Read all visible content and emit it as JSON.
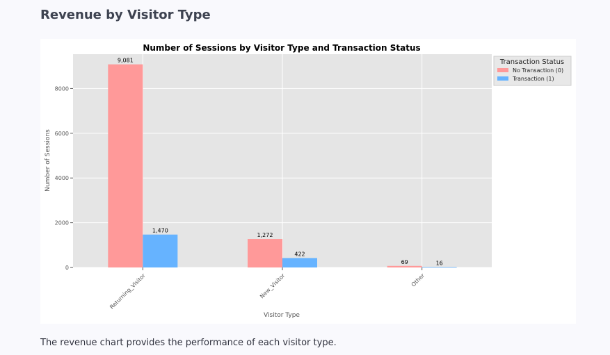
{
  "page": {
    "section_title": "Revenue by Visitor Type",
    "caption": "The revenue chart provides the performance of each visitor type."
  },
  "chart_data": {
    "type": "bar",
    "title": "Number of Sessions by Visitor Type and Transaction Status",
    "xlabel": "Visitor Type",
    "ylabel": "Number of Sessions",
    "categories": [
      "Returning_Visitor",
      "New_Visitor",
      "Other"
    ],
    "series": [
      {
        "name": "No Transaction (0)",
        "color": "#ff9999",
        "values": [
          9081,
          1272,
          69
        ],
        "labels": [
          "9,081",
          "1,272",
          "69"
        ]
      },
      {
        "name": "Transaction (1)",
        "color": "#66b3ff",
        "values": [
          1470,
          422,
          16
        ],
        "labels": [
          "1,470",
          "422",
          "16"
        ]
      }
    ],
    "ylim": [
      0,
      9535
    ],
    "yticks": [
      0,
      2000,
      4000,
      6000,
      8000
    ],
    "ytick_labels": [
      "0",
      "2000",
      "4000",
      "6000",
      "8000"
    ],
    "grid": true,
    "legend": {
      "title": "Transaction Status",
      "placement": "outside-top-right"
    },
    "background_color": "#e5e5e5"
  }
}
